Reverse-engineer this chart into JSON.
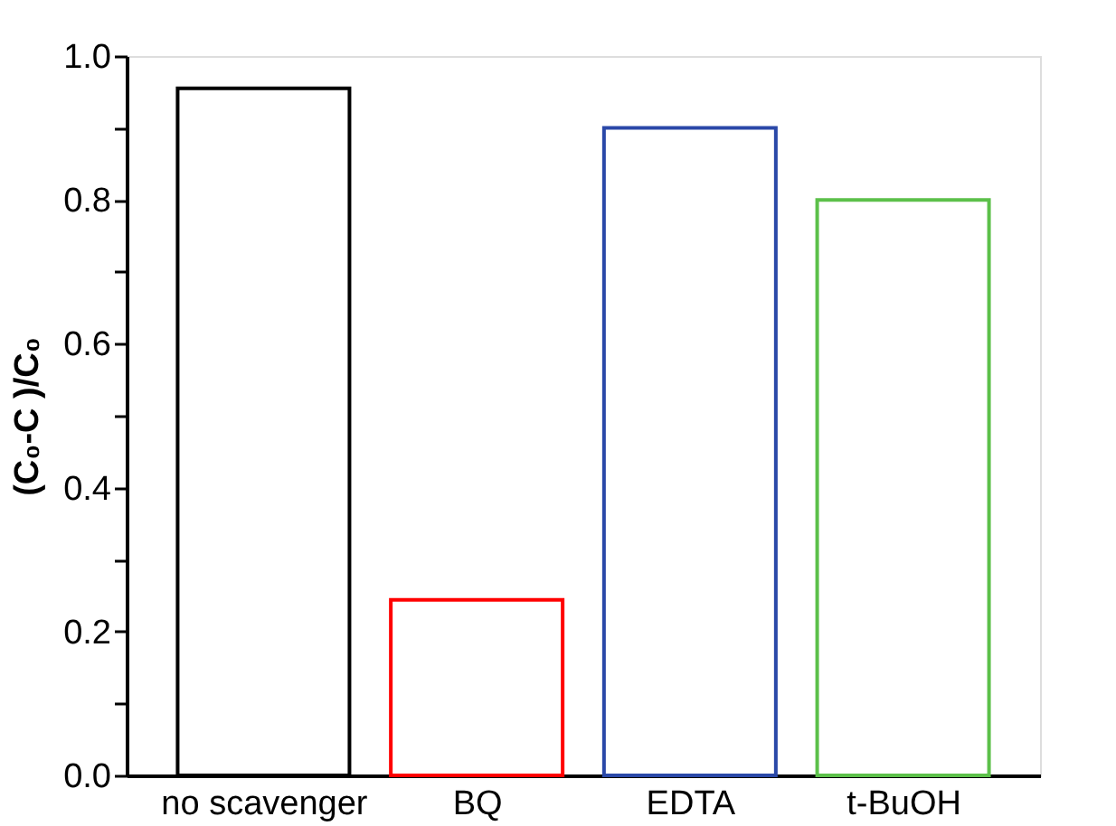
{
  "chart_data": {
    "type": "bar",
    "ylabel": "(C₀-C )/C₀",
    "categories": [
      "no scavenger",
      "BQ",
      "EDTA",
      "t-BuOH"
    ],
    "values": [
      0.955,
      0.244,
      0.9,
      0.8
    ],
    "colors": [
      "#000000",
      "#ff0000",
      "#2a48a8",
      "#5cc04a"
    ],
    "ylim": [
      0,
      1.0
    ],
    "yticks": [
      {
        "value": 0,
        "label": "0.0"
      },
      {
        "value": 0.1,
        "label": null
      },
      0.2,
      {
        "value": 0.3,
        "label": null
      },
      0.4,
      {
        "value": 0.5,
        "label": null
      },
      0.6,
      {
        "value": 0.7,
        "label": null
      },
      0.8,
      {
        "value": 0.9,
        "label": null
      },
      {
        "value": 1,
        "label": "1.0"
      }
    ],
    "grid": false
  }
}
